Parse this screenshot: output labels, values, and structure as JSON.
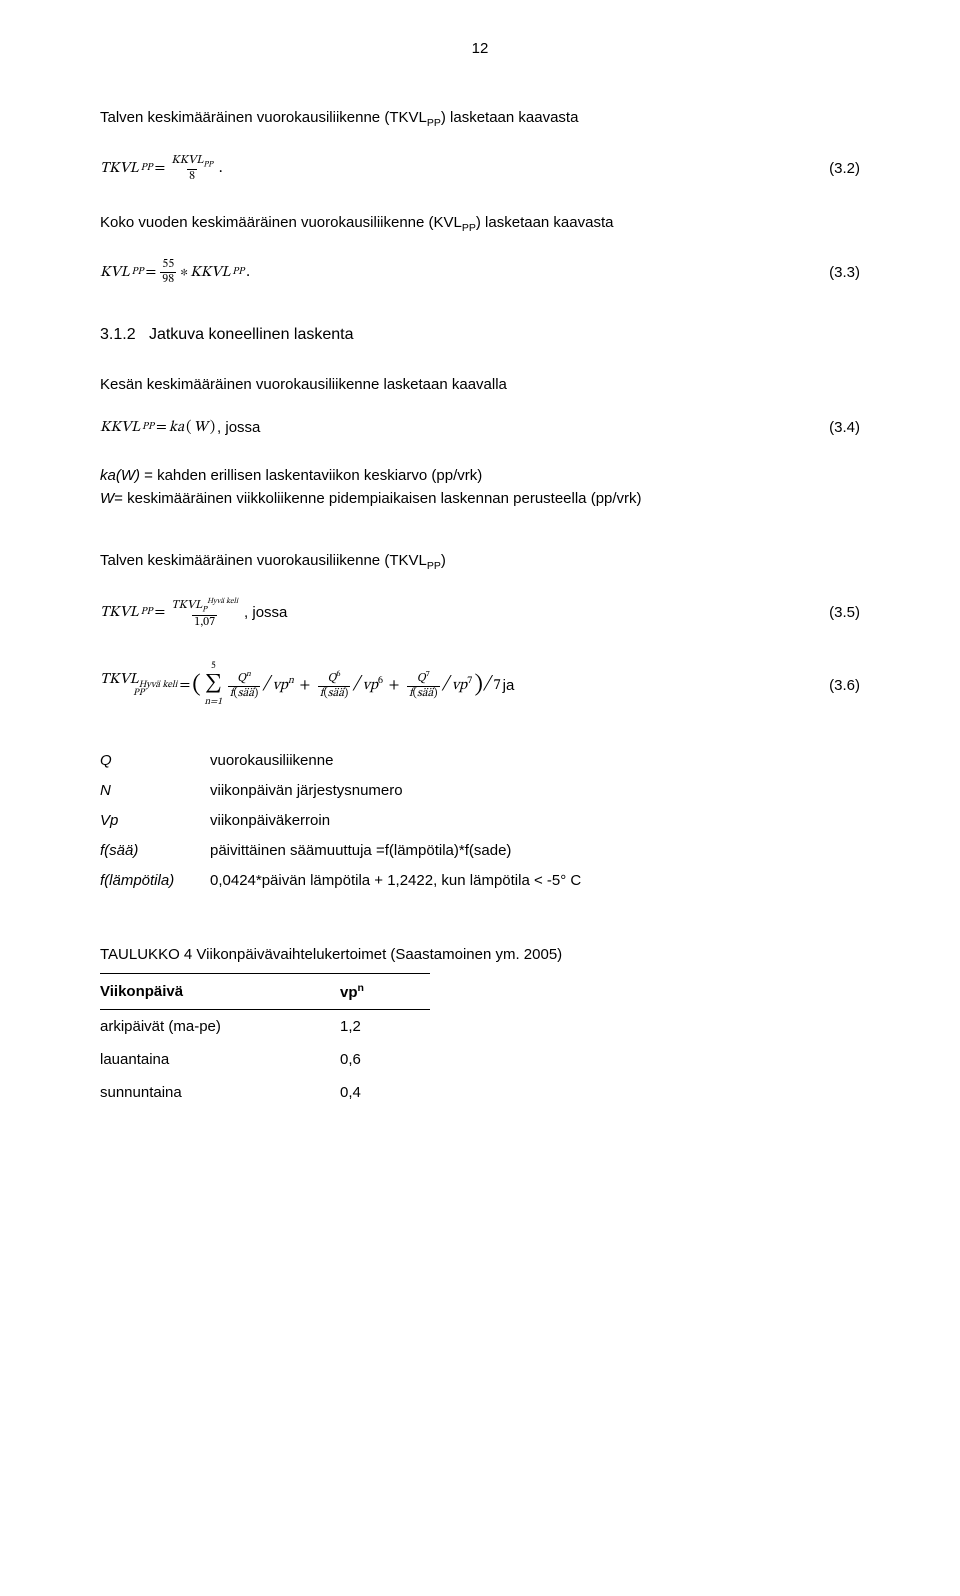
{
  "page_number": "12",
  "intro_winter": "Talven keskimääräinen vuorokausiliikenne (TKVL",
  "intro_winter_sub": "PP",
  "intro_winter_tail": ") lasketaan kaavasta",
  "eq32": {
    "lhs_var": "TKVL",
    "lhs_sub": "PP",
    "eq": " = ",
    "num_var": "KKVL",
    "num_sub": "PP",
    "den": "8",
    "period": ".",
    "num_label": "(3.2)"
  },
  "intro_year": "Koko vuoden keskimääräinen vuorokausiliikenne (KVL",
  "intro_year_sub": "PP",
  "intro_year_tail": ") lasketaan kaavasta",
  "eq33": {
    "lhs_var": "KVL",
    "lhs_sub": "PP",
    "eq": " = ",
    "num": "55",
    "den": "98",
    "times": " ∗ ",
    "rhs_var": "KKVL",
    "rhs_sub": "PP",
    "period": ".",
    "num_label": "(3.3)"
  },
  "section": {
    "num": "3.1.2",
    "title": "Jatkuva koneellinen laskenta"
  },
  "intro_summer": "Kesän keskimääräinen vuorokausiliikenne lasketaan kaavalla",
  "eq34": {
    "lhs_var": "KKVL",
    "lhs_sub": "PP",
    "eq": " = ",
    "ka": "ka",
    "w": "W",
    "tail": ", jossa",
    "num_label": "(3.4)"
  },
  "def_kaw_term": "ka(W)",
  "def_kaw": " = kahden erillisen laskentaviikon keskiarvo (pp/vrk)",
  "def_w_term": "W",
  "def_w": "= keskimääräinen viikkoliikenne pidempiaikaisen laskennan perusteella (pp/vrk)",
  "intro_winter2": "Talven keskimääräinen vuorokausiliikenne (TKVL",
  "intro_winter2_sub": "PP",
  "intro_winter2_tail": ")",
  "eq35": {
    "lhs_var": "TKVL",
    "lhs_sub": "PP",
    "eq": " = ",
    "num_var": "TKVL",
    "num_sub": "P",
    "num_sup": "Hyvä keli",
    "den": "1,07",
    "tail": ", jossa",
    "num_label": "(3.5)"
  },
  "eq36": {
    "lhs_var": "TKVL",
    "lhs_sub1": "Hyvä keli",
    "lhs_sub2": "PP",
    "eq": " = ",
    "sum_top": "5",
    "sum_bot": "n=1",
    "q": "Q",
    "f": "f",
    "saa": "sää",
    "vp": "vp",
    "n": "n",
    "six": "6",
    "seven": "7",
    "div7": "7",
    "tail": " ja",
    "num_label": "(3.6)"
  },
  "defs2": [
    {
      "term": "Q",
      "desc": "vuorokausiliikenne"
    },
    {
      "term": "N",
      "desc": "viikonpäivän järjestysnumero"
    },
    {
      "term": "Vp",
      "desc": "viikonpäiväkerroin"
    },
    {
      "term": "f(sää)",
      "desc": "päivittäinen säämuuttuja =f(lämpötila)*f(sade)"
    },
    {
      "term": "f(lämpötila)",
      "desc": "0,0424*päivän lämpötila + 1,2422, kun lämpötila < -5° C"
    }
  ],
  "table": {
    "caption": "TAULUKKO 4 Viikonpäivävaihtelukertoimet (Saastamoinen ym. 2005)",
    "col1": "Viikonpäivä",
    "col2_base": "vp",
    "col2_sup": "n",
    "rows": [
      {
        "day": "arkipäivät (ma-pe)",
        "val": "1,2"
      },
      {
        "day": "lauantaina",
        "val": "0,6"
      },
      {
        "day": "sunnuntaina",
        "val": "0,4"
      }
    ]
  }
}
